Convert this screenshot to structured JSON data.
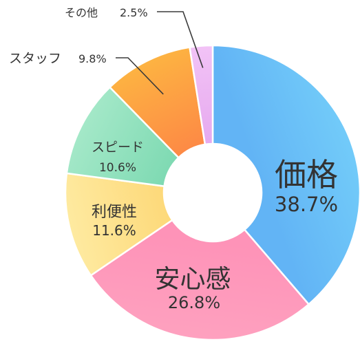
{
  "chart_data": {
    "type": "pie",
    "variant": "donut",
    "unit": "%",
    "slices": [
      {
        "label": "価格",
        "value": 38.7,
        "pct": "38.7%",
        "color": "#62b4f5",
        "color_light": "#72cbf9"
      },
      {
        "label": "安心感",
        "value": 26.8,
        "pct": "26.8%",
        "color": "#fe93b8",
        "color_light": "#fea1bf"
      },
      {
        "label": "利便性",
        "value": 11.6,
        "pct": "11.6%",
        "color": "#fdd97a",
        "color_light": "#feeaa0"
      },
      {
        "label": "スピード",
        "value": 10.6,
        "pct": "10.6%",
        "color": "#7fdab3",
        "color_light": "#a4e8c8"
      },
      {
        "label": "スタッフ",
        "value": 9.8,
        "pct": "9.8%",
        "color": "#fd8a45",
        "color_light": "#fdb342"
      },
      {
        "label": "その他",
        "value": 2.5,
        "pct": "2.5%",
        "color": "#e6a9ef",
        "color_light": "#f2c3f6"
      }
    ],
    "start": "12 o'clock",
    "direction": "clockwise",
    "legend": "none"
  }
}
